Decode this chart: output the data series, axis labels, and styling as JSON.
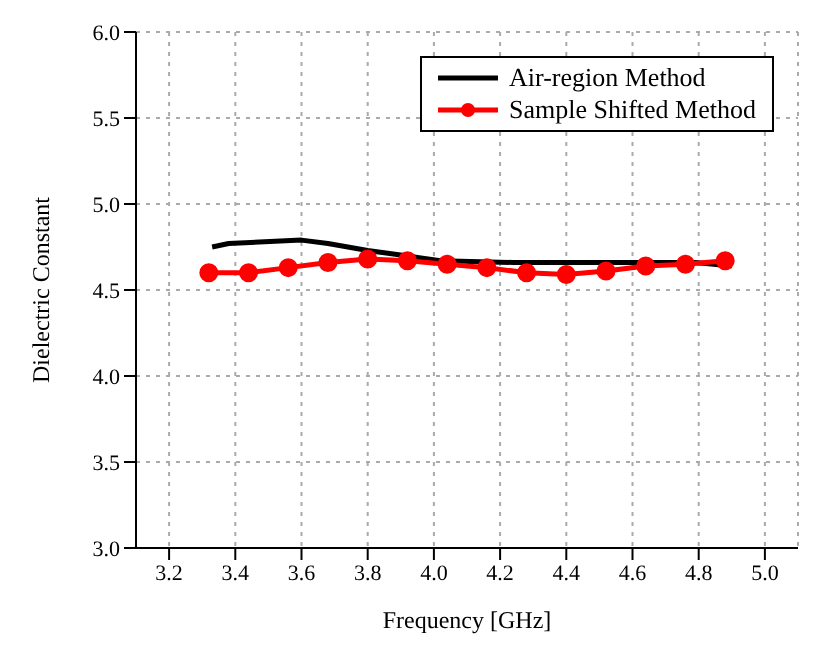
{
  "chart_data": {
    "type": "line",
    "xlabel": "Frequency [GHz]",
    "ylabel": "Dielectric Constant",
    "xlim": [
      3.1,
      5.1
    ],
    "xticks": [
      3.2,
      3.4,
      3.6,
      3.8,
      {
        "value": 4,
        "label": "4.0"
      },
      4.2,
      4.4,
      4.6,
      4.8,
      {
        "value": 5,
        "label": "5.0"
      }
    ],
    "ylim": [
      3.0,
      6.0
    ],
    "yticks": [
      {
        "value": 3,
        "label": "3.0"
      },
      3.5,
      {
        "value": 4,
        "label": "4.0"
      },
      4.5,
      {
        "value": 5,
        "label": "5.0"
      },
      5.5,
      {
        "value": 6,
        "label": "6.0"
      }
    ],
    "grid": true,
    "legend": "top right",
    "series": [
      {
        "name": "Air-region Method",
        "color": "#000000",
        "marker": "none",
        "x": [
          3.33,
          3.38,
          3.6,
          3.68,
          3.8,
          3.91,
          4.02,
          4.24,
          4.42,
          4.61,
          4.79,
          4.9
        ],
        "values": [
          4.75,
          4.77,
          4.79,
          4.77,
          4.73,
          4.7,
          4.67,
          4.66,
          4.66,
          4.66,
          4.66,
          4.64
        ]
      },
      {
        "name": "Sample Shifted Method",
        "color": "#ff0000",
        "marker": "circle",
        "x": [
          3.32,
          3.44,
          3.56,
          3.68,
          3.8,
          3.92,
          4.04,
          4.16,
          4.28,
          4.4,
          4.52,
          4.64,
          4.76,
          4.88
        ],
        "values": [
          4.6,
          4.6,
          4.63,
          4.66,
          4.68,
          4.67,
          4.65,
          4.63,
          4.6,
          4.59,
          4.61,
          4.64,
          4.65,
          4.67
        ]
      }
    ]
  }
}
